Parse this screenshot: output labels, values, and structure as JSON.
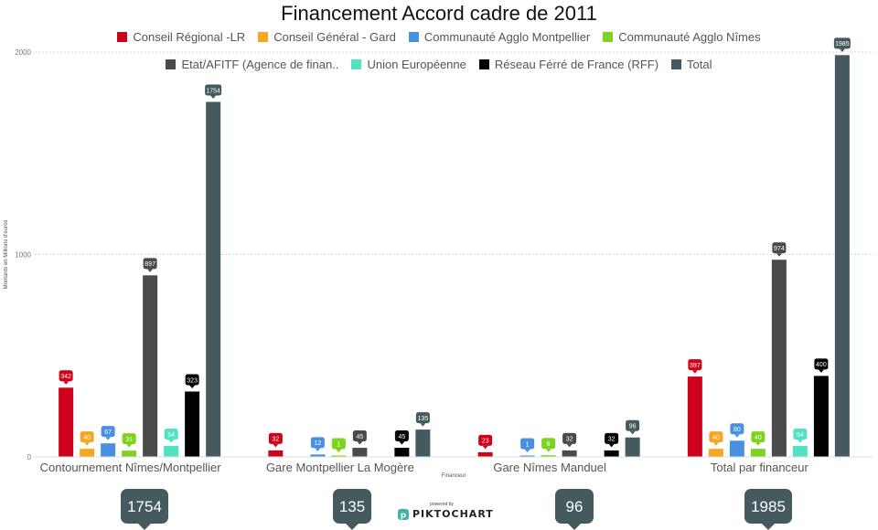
{
  "chart_data": {
    "type": "bar",
    "title": "Financement Accord cadre de 2011",
    "xlabel": "Financeur",
    "ylabel": "Montants en Millions d'euros",
    "ylim": [
      0,
      2000
    ],
    "yticks": [
      0,
      1000,
      2000
    ],
    "grid": true,
    "legend_position": "top",
    "categories": [
      "Contournement Nîmes/Montpellier",
      "Gare Montpellier La Mogère",
      "Gare Nîmes Manduel",
      "Total par financeur"
    ],
    "series": [
      {
        "name": "Conseil Régional -LR",
        "color": "#d0021b",
        "values": [
          342,
          32,
          23,
          397
        ]
      },
      {
        "name": "Conseil Général - Gard",
        "color": "#f5a623",
        "values": [
          40,
          0,
          0,
          40
        ]
      },
      {
        "name": "Communauté Agglo Montpellier",
        "color": "#4a90e2",
        "values": [
          67,
          12,
          1,
          80
        ]
      },
      {
        "name": "Communauté Agglo Nîmes",
        "color": "#7ed321",
        "values": [
          31,
          1,
          8,
          40
        ]
      },
      {
        "name": "Etat/AFITF (Agence de finan..",
        "color": "#4a4a4a",
        "values": [
          897,
          45,
          32,
          974
        ]
      },
      {
        "name": "Union Européenne",
        "color": "#50e3c2",
        "values": [
          54,
          0,
          0,
          54
        ]
      },
      {
        "name": "Réseau Férré de France (RFF)",
        "color": "#000000",
        "values": [
          323,
          45,
          32,
          400
        ]
      },
      {
        "name": "Total",
        "color": "#455a5e",
        "values": [
          1754,
          135,
          96,
          1985
        ]
      }
    ],
    "data_label_text_color": "#ffffff",
    "callouts": [
      {
        "value": "1754",
        "color": "#455a5e"
      },
      {
        "value": "135",
        "color": "#455a5e"
      },
      {
        "value": "96",
        "color": "#455a5e"
      },
      {
        "value": "1985",
        "color": "#455a5e"
      }
    ]
  },
  "footer": {
    "powered_by": "powered by",
    "brand": "PIKTOCHART",
    "brand_color": "#3fb5a9"
  }
}
